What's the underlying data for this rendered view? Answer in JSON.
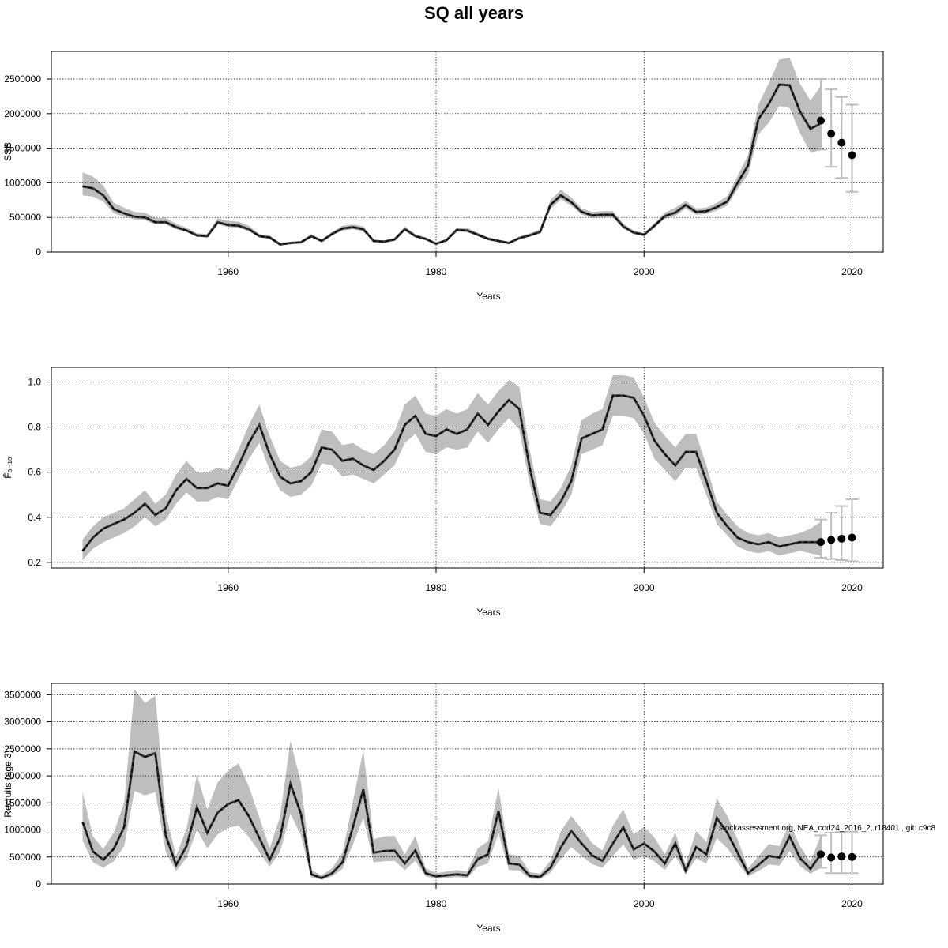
{
  "title": "SQ all years",
  "footnote": "stockassessment.org, NEA_cod24_2016_2, r18401 , git: c9c8",
  "colors": {
    "band": "#bebebe",
    "line": "#000000",
    "forecast_bar": "#bebebe",
    "grid": "#000000"
  },
  "chart_data": [
    {
      "type": "line",
      "title": "",
      "xlabel": "Years",
      "ylabel": "SSB",
      "xlim": [
        1943,
        2023
      ],
      "ylim": [
        0,
        2900000
      ],
      "xticks": [
        1960,
        1980,
        2000,
        2020
      ],
      "yticks": [
        0,
        500000,
        1000000,
        1500000,
        2000000,
        2500000
      ],
      "ytick_labels": [
        "0",
        "500000",
        "1000000",
        "1500000",
        "2000000",
        "2500000"
      ],
      "grid": true,
      "x": [
        1946,
        1947,
        1948,
        1949,
        1950,
        1951,
        1952,
        1953,
        1954,
        1955,
        1956,
        1957,
        1958,
        1959,
        1960,
        1961,
        1962,
        1963,
        1964,
        1965,
        1966,
        1967,
        1968,
        1969,
        1970,
        1971,
        1972,
        1973,
        1974,
        1975,
        1976,
        1977,
        1978,
        1979,
        1980,
        1981,
        1982,
        1983,
        1984,
        1985,
        1986,
        1987,
        1988,
        1989,
        1990,
        1991,
        1992,
        1993,
        1994,
        1995,
        1996,
        1997,
        1998,
        1999,
        2000,
        2001,
        2002,
        2003,
        2004,
        2005,
        2006,
        2007,
        2008,
        2009,
        2010,
        2011,
        2012,
        2013,
        2014,
        2015,
        2016,
        2017
      ],
      "estimate": [
        950000,
        920000,
        820000,
        620000,
        560000,
        510000,
        500000,
        430000,
        430000,
        360000,
        310000,
        240000,
        230000,
        430000,
        390000,
        380000,
        330000,
        230000,
        210000,
        110000,
        130000,
        140000,
        230000,
        160000,
        260000,
        340000,
        360000,
        330000,
        160000,
        150000,
        180000,
        330000,
        230000,
        190000,
        120000,
        170000,
        320000,
        310000,
        250000,
        190000,
        160000,
        130000,
        200000,
        240000,
        290000,
        680000,
        820000,
        720000,
        580000,
        530000,
        540000,
        540000,
        370000,
        280000,
        250000,
        380000,
        520000,
        570000,
        680000,
        580000,
        590000,
        650000,
        730000,
        1000000,
        1250000,
        1920000,
        2140000,
        2420000,
        2410000,
        2030000,
        1780000,
        1860000
      ],
      "lower": [
        820000,
        800000,
        730000,
        560000,
        510000,
        470000,
        460000,
        400000,
        400000,
        330000,
        290000,
        220000,
        210000,
        400000,
        360000,
        350000,
        300000,
        210000,
        190000,
        100000,
        120000,
        130000,
        210000,
        150000,
        240000,
        310000,
        330000,
        300000,
        150000,
        140000,
        165000,
        310000,
        210000,
        175000,
        110000,
        155000,
        295000,
        285000,
        230000,
        175000,
        150000,
        120000,
        185000,
        220000,
        265000,
        620000,
        760000,
        670000,
        540000,
        490000,
        500000,
        500000,
        340000,
        260000,
        230000,
        350000,
        480000,
        520000,
        630000,
        540000,
        550000,
        600000,
        670000,
        910000,
        1120000,
        1700000,
        1870000,
        2110000,
        2080000,
        1720000,
        1440000,
        1470000
      ],
      "upper": [
        1150000,
        1090000,
        960000,
        710000,
        640000,
        580000,
        570000,
        490000,
        490000,
        410000,
        350000,
        270000,
        260000,
        490000,
        450000,
        440000,
        380000,
        260000,
        240000,
        130000,
        150000,
        160000,
        260000,
        180000,
        290000,
        380000,
        400000,
        370000,
        180000,
        170000,
        200000,
        370000,
        260000,
        215000,
        135000,
        190000,
        355000,
        345000,
        280000,
        215000,
        180000,
        150000,
        225000,
        270000,
        330000,
        750000,
        900000,
        790000,
        630000,
        580000,
        590000,
        590000,
        410000,
        310000,
        275000,
        420000,
        570000,
        640000,
        740000,
        630000,
        640000,
        710000,
        810000,
        1100000,
        1400000,
        2130000,
        2440000,
        2780000,
        2810000,
        2430000,
        2190000,
        2400000
      ],
      "forecast": {
        "x": [
          2017,
          2018,
          2019,
          2020
        ],
        "median": [
          1900000,
          1710000,
          1580000,
          1400000
        ],
        "lower": [
          1480000,
          1230000,
          1070000,
          870000
        ],
        "upper": [
          2500000,
          2350000,
          2240000,
          2130000
        ]
      }
    },
    {
      "type": "line",
      "title": "",
      "xlabel": "Years",
      "ylabel": "F̄₅₋₁₀",
      "xlim": [
        1943,
        2023
      ],
      "ylim": [
        0.175,
        1.065
      ],
      "xticks": [
        1960,
        1980,
        2000,
        2020
      ],
      "yticks": [
        0.2,
        0.4,
        0.6,
        0.8,
        1.0
      ],
      "ytick_labels": [
        "0.2",
        "0.4",
        "0.6",
        "0.8",
        "1.0"
      ],
      "grid": true,
      "x": [
        1946,
        1947,
        1948,
        1949,
        1950,
        1951,
        1952,
        1953,
        1954,
        1955,
        1956,
        1957,
        1958,
        1959,
        1960,
        1961,
        1962,
        1963,
        1964,
        1965,
        1966,
        1967,
        1968,
        1969,
        1970,
        1971,
        1972,
        1973,
        1974,
        1975,
        1976,
        1977,
        1978,
        1979,
        1980,
        1981,
        1982,
        1983,
        1984,
        1985,
        1986,
        1987,
        1988,
        1989,
        1990,
        1991,
        1992,
        1993,
        1994,
        1995,
        1996,
        1997,
        1998,
        1999,
        2000,
        2001,
        2002,
        2003,
        2004,
        2005,
        2006,
        2007,
        2008,
        2009,
        2010,
        2011,
        2012,
        2013,
        2014,
        2015,
        2016,
        2017
      ],
      "estimate": [
        0.25,
        0.31,
        0.35,
        0.37,
        0.39,
        0.42,
        0.46,
        0.41,
        0.44,
        0.52,
        0.57,
        0.53,
        0.53,
        0.55,
        0.54,
        0.63,
        0.73,
        0.81,
        0.68,
        0.58,
        0.55,
        0.56,
        0.6,
        0.71,
        0.7,
        0.65,
        0.66,
        0.63,
        0.61,
        0.65,
        0.7,
        0.81,
        0.85,
        0.77,
        0.76,
        0.79,
        0.77,
        0.79,
        0.86,
        0.81,
        0.87,
        0.92,
        0.88,
        0.62,
        0.42,
        0.41,
        0.47,
        0.56,
        0.75,
        0.77,
        0.79,
        0.94,
        0.94,
        0.93,
        0.85,
        0.74,
        0.68,
        0.63,
        0.69,
        0.69,
        0.56,
        0.42,
        0.36,
        0.31,
        0.29,
        0.28,
        0.29,
        0.27,
        0.28,
        0.29,
        0.29,
        0.29
      ],
      "lower": [
        0.21,
        0.26,
        0.29,
        0.31,
        0.33,
        0.36,
        0.4,
        0.36,
        0.39,
        0.46,
        0.51,
        0.47,
        0.47,
        0.49,
        0.48,
        0.57,
        0.66,
        0.73,
        0.61,
        0.52,
        0.49,
        0.5,
        0.54,
        0.64,
        0.63,
        0.58,
        0.59,
        0.57,
        0.55,
        0.59,
        0.63,
        0.73,
        0.77,
        0.69,
        0.68,
        0.71,
        0.7,
        0.71,
        0.78,
        0.73,
        0.79,
        0.84,
        0.79,
        0.55,
        0.37,
        0.36,
        0.42,
        0.5,
        0.68,
        0.7,
        0.72,
        0.85,
        0.85,
        0.84,
        0.77,
        0.66,
        0.61,
        0.56,
        0.62,
        0.62,
        0.5,
        0.37,
        0.32,
        0.27,
        0.25,
        0.24,
        0.25,
        0.23,
        0.24,
        0.25,
        0.24,
        0.23
      ],
      "upper": [
        0.3,
        0.36,
        0.4,
        0.42,
        0.44,
        0.48,
        0.52,
        0.46,
        0.5,
        0.59,
        0.65,
        0.6,
        0.6,
        0.62,
        0.61,
        0.7,
        0.81,
        0.9,
        0.76,
        0.65,
        0.62,
        0.63,
        0.67,
        0.79,
        0.78,
        0.72,
        0.73,
        0.7,
        0.68,
        0.72,
        0.78,
        0.9,
        0.94,
        0.86,
        0.85,
        0.88,
        0.86,
        0.88,
        0.95,
        0.9,
        0.96,
        1.01,
        0.98,
        0.7,
        0.48,
        0.47,
        0.53,
        0.63,
        0.83,
        0.86,
        0.88,
        1.03,
        1.03,
        1.02,
        0.93,
        0.82,
        0.76,
        0.71,
        0.77,
        0.77,
        0.63,
        0.47,
        0.41,
        0.36,
        0.33,
        0.32,
        0.33,
        0.31,
        0.32,
        0.33,
        0.35,
        0.38
      ],
      "forecast": {
        "x": [
          2017,
          2018,
          2019,
          2020
        ],
        "median": [
          0.29,
          0.3,
          0.305,
          0.31
        ],
        "lower": [
          0.22,
          0.215,
          0.21,
          0.205
        ],
        "upper": [
          0.39,
          0.42,
          0.45,
          0.48
        ]
      }
    },
    {
      "type": "line",
      "title": "",
      "xlabel": "Years",
      "ylabel": "Recruits (age 3)",
      "xlim": [
        1943,
        2023
      ],
      "ylim": [
        0,
        3710000
      ],
      "xticks": [
        1960,
        1980,
        2000,
        2020
      ],
      "yticks": [
        0,
        500000,
        1000000,
        1500000,
        2000000,
        2500000,
        3000000,
        3500000
      ],
      "ytick_labels": [
        "0",
        "500000",
        "1000000",
        "1500000",
        "2000000",
        "2500000",
        "3000000",
        "3500000"
      ],
      "grid": true,
      "x": [
        1946,
        1947,
        1948,
        1949,
        1950,
        1951,
        1952,
        1953,
        1954,
        1955,
        1956,
        1957,
        1958,
        1959,
        1960,
        1961,
        1962,
        1963,
        1964,
        1965,
        1966,
        1967,
        1968,
        1969,
        1970,
        1971,
        1972,
        1973,
        1974,
        1975,
        1976,
        1977,
        1978,
        1979,
        1980,
        1981,
        1982,
        1983,
        1984,
        1985,
        1986,
        1987,
        1988,
        1989,
        1990,
        1991,
        1992,
        1993,
        1994,
        1995,
        1996,
        1997,
        1998,
        1999,
        2000,
        2001,
        2002,
        2003,
        2004,
        2005,
        2006,
        2007,
        2008,
        2009,
        2010,
        2011,
        2012,
        2013,
        2014,
        2015,
        2016,
        2017
      ],
      "estimate": [
        1150000,
        600000,
        450000,
        650000,
        1050000,
        2450000,
        2350000,
        2420000,
        900000,
        350000,
        700000,
        1420000,
        950000,
        1320000,
        1480000,
        1550000,
        1250000,
        850000,
        450000,
        850000,
        1850000,
        1300000,
        180000,
        110000,
        200000,
        400000,
        1050000,
        1750000,
        580000,
        610000,
        620000,
        380000,
        620000,
        200000,
        140000,
        160000,
        180000,
        160000,
        460000,
        550000,
        1350000,
        380000,
        360000,
        150000,
        130000,
        300000,
        680000,
        980000,
        750000,
        530000,
        430000,
        750000,
        1050000,
        640000,
        750000,
        600000,
        380000,
        750000,
        250000,
        680000,
        550000,
        1220000,
        950000,
        580000,
        200000,
        350000,
        520000,
        490000,
        880000,
        480000,
        280000,
        550000
      ],
      "lower": [
        800000,
        400000,
        300000,
        420000,
        700000,
        1720000,
        1640000,
        1700000,
        600000,
        240000,
        480000,
        1000000,
        660000,
        920000,
        1040000,
        1080000,
        870000,
        590000,
        320000,
        600000,
        1300000,
        900000,
        120000,
        80000,
        140000,
        280000,
        730000,
        1220000,
        400000,
        420000,
        430000,
        260000,
        430000,
        140000,
        100000,
        110000,
        130000,
        110000,
        320000,
        380000,
        940000,
        260000,
        250000,
        100000,
        90000,
        210000,
        470000,
        680000,
        520000,
        370000,
        300000,
        520000,
        730000,
        450000,
        520000,
        420000,
        260000,
        520000,
        180000,
        470000,
        380000,
        850000,
        660000,
        400000,
        140000,
        240000,
        360000,
        340000,
        610000,
        330000,
        190000,
        300000
      ],
      "upper": [
        1700000,
        880000,
        650000,
        950000,
        1500000,
        3600000,
        3350000,
        3480000,
        1300000,
        520000,
        1020000,
        2020000,
        1380000,
        1880000,
        2100000,
        2230000,
        1800000,
        1230000,
        660000,
        1250000,
        2650000,
        1880000,
        260000,
        160000,
        290000,
        580000,
        1520000,
        2480000,
        830000,
        880000,
        890000,
        550000,
        890000,
        290000,
        200000,
        230000,
        260000,
        230000,
        660000,
        790000,
        1780000,
        550000,
        520000,
        220000,
        190000,
        430000,
        980000,
        1260000,
        1020000,
        760000,
        620000,
        1080000,
        1380000,
        920000,
        1060000,
        860000,
        550000,
        950000,
        360000,
        980000,
        780000,
        1580000,
        1260000,
        830000,
        290000,
        510000,
        740000,
        700000,
        1130000,
        700000,
        410000,
        900000
      ],
      "forecast": {
        "x": [
          2017,
          2018,
          2019,
          2020
        ],
        "median": [
          550000,
          490000,
          510000,
          500000
        ],
        "lower": [
          300000,
          200000,
          200000,
          200000
        ],
        "upper": [
          900000,
          950000,
          960000,
          970000
        ]
      }
    }
  ]
}
